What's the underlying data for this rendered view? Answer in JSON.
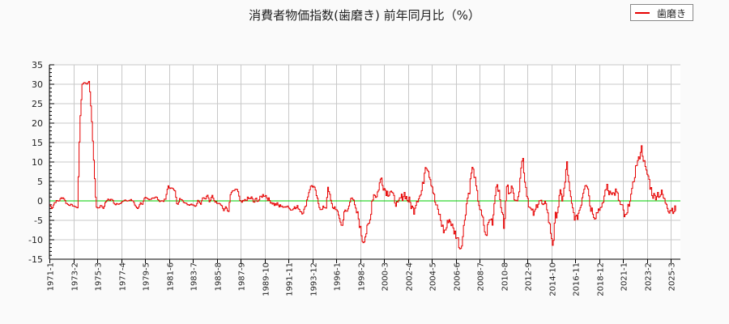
{
  "chart_data": {
    "type": "line",
    "title": "消費者物価指数(歯磨き) 前年同月比（%）",
    "xlabel": "",
    "ylabel": "",
    "ylim": [
      -15,
      35
    ],
    "yticks": [
      35,
      30,
      25,
      20,
      15,
      10,
      5,
      0,
      -5,
      -10,
      -15
    ],
    "xlim_months": [
      "1971-1",
      "2025-12"
    ],
    "xticks": [
      "1971-1",
      "1973-2",
      "1975-3",
      "1977-4",
      "1979-5",
      "1981-6",
      "1983-7",
      "1985-8",
      "1987-9",
      "1989-10",
      "1991-11",
      "1993-12",
      "1996-1",
      "1998-2",
      "2000-3",
      "2002-4",
      "2004-5",
      "2006-6",
      "2008-7",
      "2010-8",
      "2012-9",
      "2014-10",
      "2016-11",
      "2018-12",
      "2021-1",
      "2023-2",
      "2025-3"
    ],
    "grid": true,
    "legend": {
      "position": "top-right",
      "entries": [
        "歯磨き"
      ]
    },
    "zero_line": {
      "value": 0,
      "color": "#00cc00"
    },
    "series": [
      {
        "name": "歯磨き",
        "color": "#e60000",
        "start": "1971-1",
        "step": "3 months (approx, quarterly sampled)",
        "values": [
          -1.0,
          -2.0,
          -0.5,
          0.0,
          0.0,
          0.8,
          0.8,
          -0.5,
          -1.0,
          -1.0,
          -1.2,
          -1.5,
          -1.8,
          20.0,
          30.0,
          30.5,
          30.0,
          30.8,
          22.0,
          10.0,
          -1.5,
          -2.0,
          -1.0,
          -2.0,
          -0.5,
          0.5,
          0.2,
          0.5,
          -1.0,
          -0.8,
          -0.8,
          -0.5,
          0.3,
          0.2,
          0.0,
          0.2,
          0.0,
          -1.5,
          -2.0,
          -0.5,
          -0.8,
          0.8,
          0.5,
          0.2,
          0.8,
          0.8,
          1.0,
          0.0,
          0.0,
          0.0,
          0.5,
          4.0,
          3.0,
          3.5,
          2.5,
          -1.5,
          0.5,
          0.5,
          -0.5,
          -0.8,
          -1.0,
          -0.8,
          -1.0,
          -1.5,
          0.5,
          -1.0,
          1.0,
          0.5,
          1.5,
          -0.5,
          1.5,
          0.0,
          -0.5,
          -0.5,
          -1.0,
          -2.5,
          -1.5,
          -3.0,
          2.0,
          2.5,
          2.8,
          3.0,
          0.0,
          -0.5,
          0.0,
          0.5,
          0.5,
          0.8,
          -0.5,
          0.5,
          0.0,
          1.0,
          1.5,
          1.5,
          0.5,
          0.0,
          -0.5,
          -1.0,
          -0.8,
          -1.5,
          -1.0,
          -2.0,
          -1.0,
          -1.5,
          -2.5,
          -1.5,
          -2.0,
          -1.5,
          -2.5,
          -3.0,
          -2.0,
          0.5,
          3.0,
          4.0,
          3.5,
          1.5,
          -1.5,
          -2.0,
          -1.5,
          -2.5,
          4.0,
          0.5,
          -2.0,
          -1.5,
          -3.0,
          -4.5,
          -7.0,
          -2.5,
          -3.0,
          -1.5,
          1.5,
          0.0,
          -2.5,
          -4.0,
          -7.5,
          -10.5,
          -9.0,
          -7.0,
          -5.5,
          0.5,
          2.0,
          1.0,
          4.0,
          6.0,
          3.5,
          2.5,
          2.0,
          3.0,
          1.0,
          0.0,
          -1.5,
          0.5,
          1.0,
          2.0,
          0.5,
          0.0,
          -1.5,
          -2.5,
          0.0,
          1.0,
          1.5,
          4.5,
          9.5,
          8.5,
          6.0,
          3.5,
          0.0,
          -2.0,
          -3.5,
          -6.0,
          -8.0,
          -7.0,
          -4.5,
          -5.5,
          -7.5,
          -8.5,
          -10.0,
          -12.5,
          -9.5,
          -4.0,
          0.5,
          3.0,
          8.5,
          7.0,
          2.5,
          -0.5,
          -3.5,
          -5.5,
          -9.5,
          -6.0,
          -4.5,
          -5.5,
          2.0,
          5.0,
          0.5,
          -2.5,
          -7.5,
          4.0,
          2.5,
          3.5,
          1.5,
          1.0,
          0.0,
          8.5,
          11.0,
          4.5,
          1.0,
          -2.0,
          -3.0,
          -3.5,
          -1.0,
          0.5,
          -0.5,
          -2.0,
          0.0,
          -4.5,
          -8.0,
          -11.5,
          -4.0,
          -2.5,
          2.0,
          0.5,
          3.5,
          10.0,
          3.0,
          -1.0,
          -3.5,
          -5.0,
          -3.0,
          -1.0,
          2.5,
          5.0,
          4.0,
          -1.5,
          -2.5,
          -4.0,
          -3.0,
          -1.5,
          -2.5,
          1.0,
          4.0,
          2.0,
          3.0,
          1.5,
          2.5,
          1.0,
          -1.0,
          -2.0,
          -4.5,
          -3.5,
          0.5,
          2.0,
          6.0,
          9.5,
          10.5,
          14.0,
          11.0,
          7.5,
          6.5,
          3.5,
          1.5,
          1.0,
          2.0,
          1.5,
          2.0,
          0.0,
          -0.5,
          -2.5,
          -2.0,
          -2.2,
          -2.3
        ]
      }
    ]
  }
}
